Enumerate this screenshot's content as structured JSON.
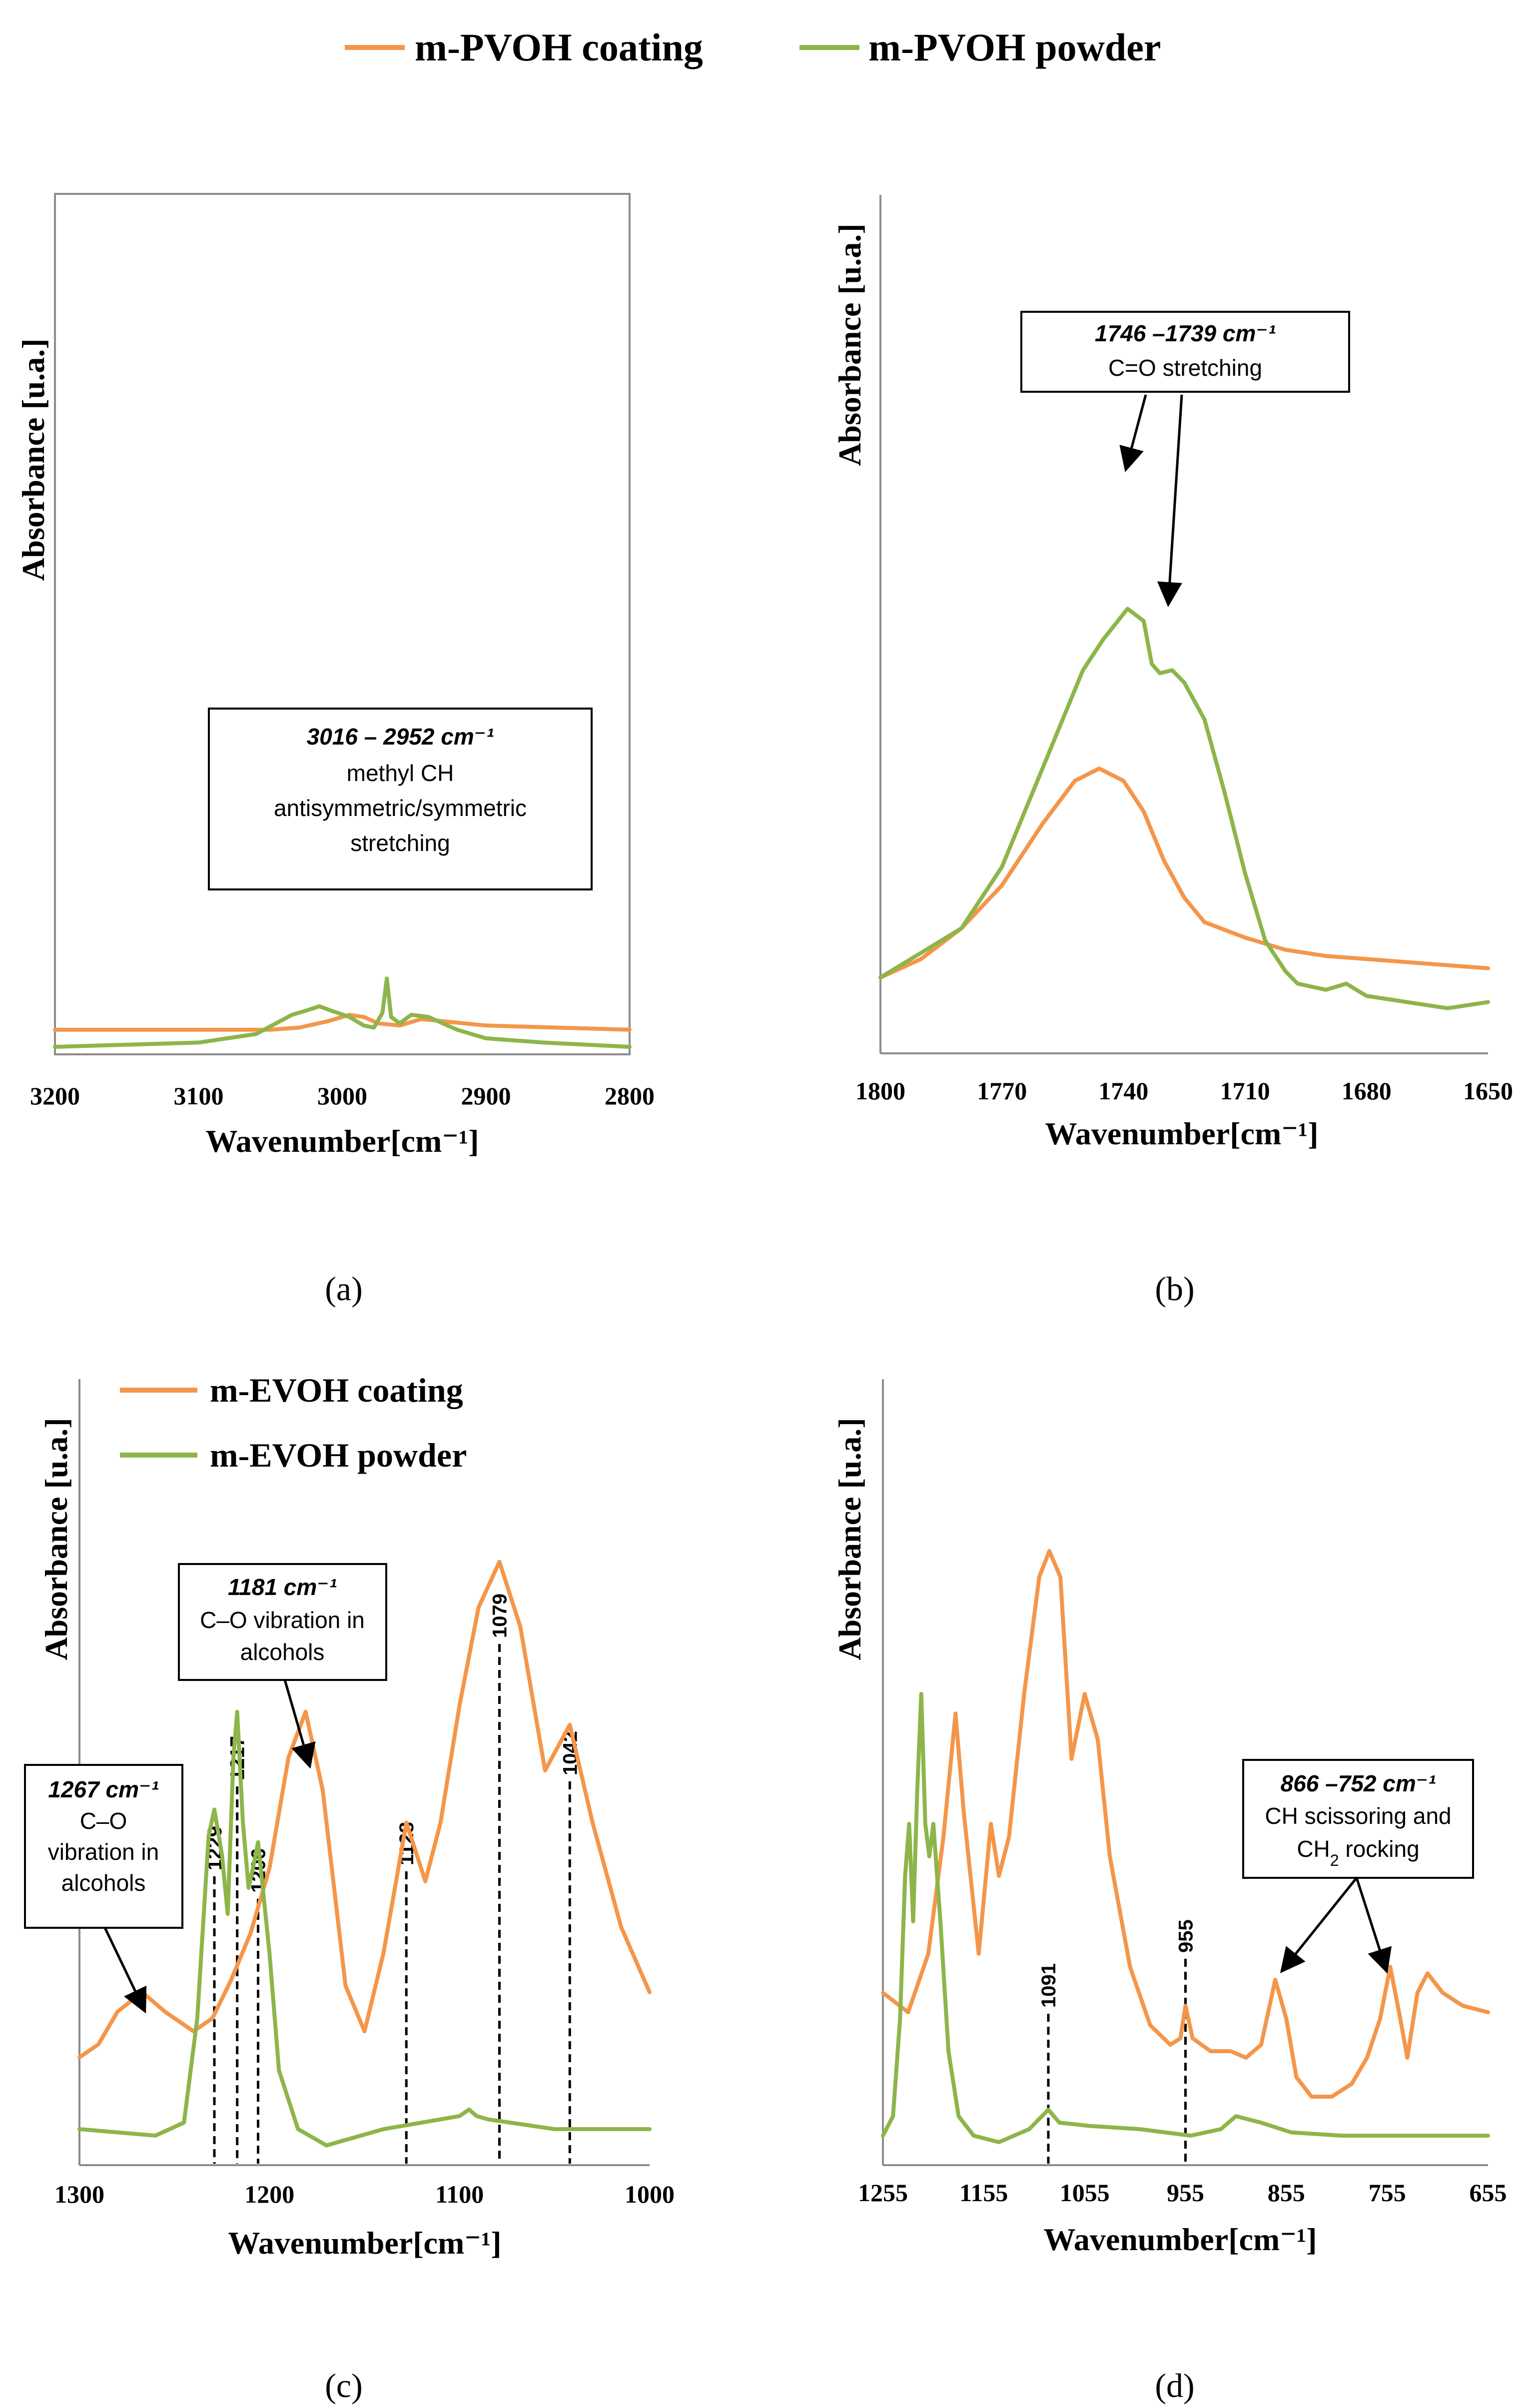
{
  "colors": {
    "coating": "#F4964A",
    "powder": "#8DB54A",
    "axis": "#7F7F7F",
    "text": "#000000"
  },
  "legend": {
    "coating_label": "m-PVOH coating",
    "powder_label": "m-PVOH powder"
  },
  "panels": {
    "a": {
      "label": "(a)",
      "ylabel": "Absorbance  [u.a.]",
      "xlabel": "Wavenumber[cm⁻¹]",
      "xticks": [
        "3200",
        "3100",
        "3000",
        "2900",
        "2800"
      ],
      "annotation": {
        "title": "3016 – 2952 cm⁻¹",
        "line1": "methyl CH",
        "line2": "antisymmetric/symmetric",
        "line3": "stretching"
      }
    },
    "b": {
      "label": "(b)",
      "ylabel": "Absorbance  [u.a.]",
      "xlabel": "Wavenumber[cm⁻¹]",
      "xticks": [
        "1800",
        "1770",
        "1740",
        "1710",
        "1680",
        "1650"
      ],
      "annotation": {
        "title": "1746 –1739 cm⁻¹",
        "line1": "C=O stretching"
      }
    },
    "c": {
      "label": "(c)",
      "ylabel": "Absorbance  [u.a.]",
      "xlabel": "Wavenumber[cm⁻¹]",
      "xticks": [
        "1300",
        "1200",
        "1100",
        "1000"
      ],
      "legend_coating": "m-EVOH coating",
      "legend_powder": "m-EVOH powder",
      "annotation_left": {
        "title": "1267 cm⁻¹",
        "line1": "C–O",
        "line2": "vibration in",
        "line3": "alcohols"
      },
      "annotation_mid": {
        "title": "1181 cm⁻¹",
        "line1": "C–O vibration in",
        "line2": "alcohols"
      },
      "peak_labels": [
        "1229",
        "1217",
        "1206",
        "1128",
        "1079",
        "1042"
      ]
    },
    "d": {
      "label": "(d)",
      "ylabel": "Absorbance  [u.a.]",
      "xlabel": "Wavenumber[cm⁻¹]",
      "xticks": [
        "1255",
        "1155",
        "1055",
        "955",
        "855",
        "755",
        "655"
      ],
      "annotation": {
        "title": "866 –752 cm⁻¹",
        "line1": "CH scissoring and",
        "line2_pre": "CH",
        "line2_sub": "2",
        "line2_post": " rocking"
      },
      "peak_labels": [
        "1091",
        "955"
      ]
    }
  },
  "chart_data": [
    {
      "panel": "a",
      "type": "line",
      "xlabel": "Wavenumber[cm⁻¹]",
      "ylabel": "Absorbance  [u.a.]",
      "xlim": [
        3200,
        2800
      ],
      "ylim": [
        0,
        1
      ],
      "x_reversed": true,
      "series": [
        {
          "name": "m-PVOH coating",
          "x": [
            3200,
            3100,
            3050,
            3030,
            3010,
            2995,
            2985,
            2975,
            2960,
            2945,
            2930,
            2900,
            2850,
            2800
          ],
          "y": [
            0.04,
            0.04,
            0.04,
            0.045,
            0.06,
            0.075,
            0.07,
            0.055,
            0.05,
            0.065,
            0.06,
            0.05,
            0.045,
            0.04
          ]
        },
        {
          "name": "m-PVOH powder",
          "x": [
            3200,
            3100,
            3060,
            3035,
            3025,
            3016,
            3008,
            2995,
            2985,
            2978,
            2972,
            2969,
            2966,
            2960,
            2952,
            2940,
            2920,
            2900,
            2860,
            2800
          ],
          "y": [
            0.0,
            0.01,
            0.03,
            0.075,
            0.085,
            0.095,
            0.085,
            0.07,
            0.05,
            0.045,
            0.08,
            0.16,
            0.07,
            0.055,
            0.075,
            0.07,
            0.04,
            0.02,
            0.01,
            0.0
          ]
        }
      ]
    },
    {
      "panel": "b",
      "type": "line",
      "xlabel": "Wavenumber[cm⁻¹]",
      "ylabel": "Absorbance  [u.a.]",
      "xlim": [
        1800,
        1650
      ],
      "ylim": [
        0,
        1
      ],
      "x_reversed": true,
      "series": [
        {
          "name": "m-PVOH coating",
          "x": [
            1800,
            1790,
            1780,
            1770,
            1760,
            1752,
            1746,
            1740,
            1735,
            1730,
            1725,
            1720,
            1710,
            1700,
            1690,
            1680,
            1670,
            1660,
            1650
          ],
          "y": [
            0.06,
            0.09,
            0.14,
            0.21,
            0.31,
            0.38,
            0.4,
            0.38,
            0.33,
            0.25,
            0.19,
            0.15,
            0.125,
            0.105,
            0.095,
            0.09,
            0.085,
            0.08,
            0.075
          ]
        },
        {
          "name": "m-PVOH powder",
          "x": [
            1800,
            1790,
            1780,
            1770,
            1760,
            1750,
            1745,
            1739,
            1735,
            1733,
            1731,
            1728,
            1725,
            1720,
            1715,
            1710,
            1705,
            1700,
            1697,
            1690,
            1685,
            1680,
            1670,
            1660,
            1650
          ],
          "y": [
            0.06,
            0.1,
            0.14,
            0.24,
            0.4,
            0.56,
            0.61,
            0.66,
            0.64,
            0.57,
            0.555,
            0.56,
            0.54,
            0.48,
            0.36,
            0.23,
            0.12,
            0.07,
            0.05,
            0.04,
            0.05,
            0.03,
            0.02,
            0.01,
            0.02
          ]
        }
      ]
    },
    {
      "panel": "c",
      "type": "line",
      "xlabel": "Wavenumber[cm⁻¹]",
      "ylabel": "Absorbance  [u.a.]",
      "xlim": [
        1300,
        1000
      ],
      "ylim": [
        0,
        1
      ],
      "x_reversed": true,
      "series": [
        {
          "name": "m-EVOH coating",
          "x": [
            1300,
            1290,
            1280,
            1267,
            1255,
            1240,
            1230,
            1220,
            1210,
            1200,
            1190,
            1181,
            1172,
            1160,
            1150,
            1140,
            1128,
            1118,
            1110,
            1100,
            1090,
            1079,
            1068,
            1055,
            1042,
            1030,
            1015,
            1000
          ],
          "y": [
            0.14,
            0.16,
            0.21,
            0.24,
            0.21,
            0.18,
            0.2,
            0.26,
            0.33,
            0.43,
            0.6,
            0.67,
            0.55,
            0.25,
            0.18,
            0.3,
            0.5,
            0.41,
            0.5,
            0.68,
            0.83,
            0.9,
            0.8,
            0.58,
            0.65,
            0.5,
            0.34,
            0.24
          ]
        },
        {
          "name": "m-EVOH powder",
          "x": [
            1300,
            1260,
            1245,
            1238,
            1232,
            1229,
            1225,
            1222,
            1219,
            1217,
            1214,
            1211,
            1208,
            1206,
            1200,
            1195,
            1185,
            1170,
            1140,
            1100,
            1095,
            1091,
            1085,
            1050,
            1000
          ],
          "y": [
            0.03,
            0.02,
            0.04,
            0.2,
            0.48,
            0.52,
            0.45,
            0.36,
            0.6,
            0.67,
            0.5,
            0.4,
            0.44,
            0.47,
            0.3,
            0.12,
            0.03,
            0.005,
            0.03,
            0.05,
            0.06,
            0.05,
            0.045,
            0.03,
            0.03
          ]
        }
      ],
      "marked_peaks": [
        1229,
        1217,
        1206,
        1128,
        1079,
        1042
      ]
    },
    {
      "panel": "d",
      "type": "line",
      "xlabel": "Wavenumber[cm⁻¹]",
      "ylabel": "Absorbance  [u.a.]",
      "xlim": [
        1255,
        655
      ],
      "ylim": [
        0,
        1
      ],
      "x_reversed": true,
      "series": [
        {
          "name": "m-EVOH coating",
          "x": [
            1255,
            1230,
            1210,
            1195,
            1183,
            1175,
            1160,
            1148,
            1140,
            1130,
            1115,
            1100,
            1090,
            1079,
            1068,
            1055,
            1042,
            1030,
            1010,
            990,
            970,
            960,
            955,
            948,
            930,
            910,
            895,
            880,
            866,
            855,
            845,
            830,
            810,
            790,
            775,
            762,
            752,
            742,
            735,
            725,
            715,
            700,
            680,
            655
          ],
          "y": [
            0.24,
            0.21,
            0.3,
            0.48,
            0.67,
            0.52,
            0.3,
            0.5,
            0.42,
            0.48,
            0.7,
            0.88,
            0.92,
            0.88,
            0.6,
            0.7,
            0.63,
            0.45,
            0.28,
            0.19,
            0.16,
            0.17,
            0.22,
            0.17,
            0.15,
            0.15,
            0.14,
            0.16,
            0.26,
            0.2,
            0.11,
            0.08,
            0.08,
            0.1,
            0.14,
            0.2,
            0.28,
            0.2,
            0.14,
            0.24,
            0.27,
            0.24,
            0.22,
            0.21
          ]
        },
        {
          "name": "m-EVOH powder",
          "x": [
            1255,
            1245,
            1238,
            1233,
            1229,
            1225,
            1221,
            1217,
            1213,
            1209,
            1205,
            1198,
            1190,
            1180,
            1165,
            1140,
            1110,
            1091,
            1080,
            1050,
            1000,
            950,
            920,
            905,
            880,
            850,
            800,
            750,
            700,
            655
          ],
          "y": [
            0.02,
            0.05,
            0.2,
            0.42,
            0.5,
            0.35,
            0.55,
            0.7,
            0.5,
            0.45,
            0.5,
            0.35,
            0.15,
            0.05,
            0.02,
            0.01,
            0.03,
            0.06,
            0.04,
            0.035,
            0.03,
            0.02,
            0.03,
            0.05,
            0.04,
            0.025,
            0.02,
            0.02,
            0.02,
            0.02
          ]
        }
      ],
      "marked_peaks": [
        1091,
        955
      ]
    }
  ]
}
